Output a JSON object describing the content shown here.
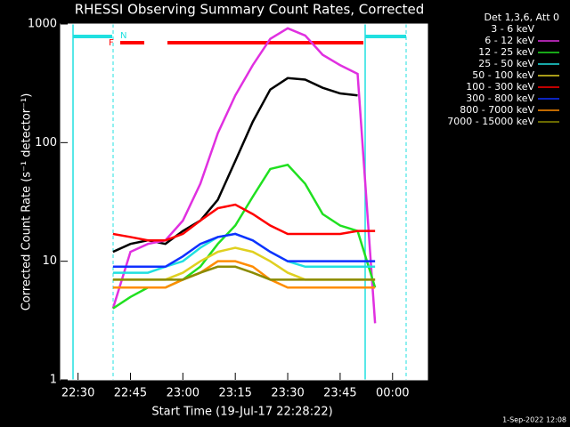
{
  "chart_data": {
    "type": "line",
    "title": "RHESSI Observing Summary Count Rates, Corrected",
    "x_label": "Start Time (19-Jul-17 22:28:22)",
    "y_label": "Corrected Count Rate (s⁻¹ detector⁻¹)",
    "legend_title": "Det 1,3,6, Att 0",
    "footer": "1-Sep-2022 12:08",
    "annotations": [
      "N",
      "F"
    ],
    "log_y": true,
    "x": [
      "22:40",
      "22:45",
      "22:50",
      "22:55",
      "23:00",
      "23:05",
      "23:10",
      "23:15",
      "23:20",
      "23:25",
      "23:30",
      "23:35",
      "23:40",
      "23:45",
      "23:50",
      "23:55"
    ],
    "xlim": [
      "22:25",
      "00:10"
    ],
    "xticks": [
      "22:30",
      "22:45",
      "23:00",
      "23:15",
      "23:30",
      "23:45",
      "00:00"
    ],
    "ylim": [
      1,
      1000
    ],
    "yticks": [
      1,
      10,
      100,
      1000
    ],
    "series": [
      {
        "name": "3 - 6 keV",
        "color": "#000000",
        "values": [
          12,
          14,
          15,
          14,
          18,
          22,
          33,
          70,
          150,
          280,
          350,
          340,
          290,
          260,
          250,
          null
        ]
      },
      {
        "name": "6 - 12 keV",
        "color": "#e030e0",
        "values": [
          4,
          12,
          14,
          15,
          22,
          45,
          120,
          250,
          450,
          750,
          920,
          800,
          550,
          450,
          380,
          3
        ]
      },
      {
        "name": "12 - 25 keV",
        "color": "#20e020",
        "values": [
          4,
          5,
          6,
          6,
          7,
          9,
          14,
          20,
          35,
          60,
          65,
          45,
          25,
          20,
          18,
          6
        ]
      },
      {
        "name": "25 - 50 keV",
        "color": "#20e0e0",
        "values": [
          8,
          8,
          8,
          9,
          10,
          13,
          16,
          17,
          15,
          12,
          10,
          9,
          9,
          9,
          9,
          9
        ]
      },
      {
        "name": "50 - 100 keV",
        "color": "#e0d020",
        "values": [
          7,
          7,
          7,
          7,
          8,
          10,
          12,
          13,
          12,
          10,
          8,
          7,
          7,
          7,
          7,
          7
        ]
      },
      {
        "name": "100 - 300 keV",
        "color": "#ff0000",
        "values": [
          17,
          16,
          15,
          15,
          17,
          22,
          28,
          30,
          25,
          20,
          17,
          17,
          17,
          17,
          18,
          18
        ]
      },
      {
        "name": "300 - 800 keV",
        "color": "#1030ff",
        "values": [
          9,
          9,
          9,
          9,
          11,
          14,
          16,
          17,
          15,
          12,
          10,
          10,
          10,
          10,
          10,
          10
        ]
      },
      {
        "name": "800 - 7000 keV",
        "color": "#ff8c00",
        "values": [
          6,
          6,
          6,
          6,
          7,
          8,
          10,
          10,
          9,
          7,
          6,
          6,
          6,
          6,
          6,
          6
        ]
      },
      {
        "name": "7000 - 15000 keV",
        "color": "#8b8b00",
        "values": [
          7,
          7,
          7,
          7,
          7,
          8,
          9,
          9,
          8,
          7,
          7,
          7,
          7,
          7,
          7,
          7
        ]
      }
    ]
  }
}
